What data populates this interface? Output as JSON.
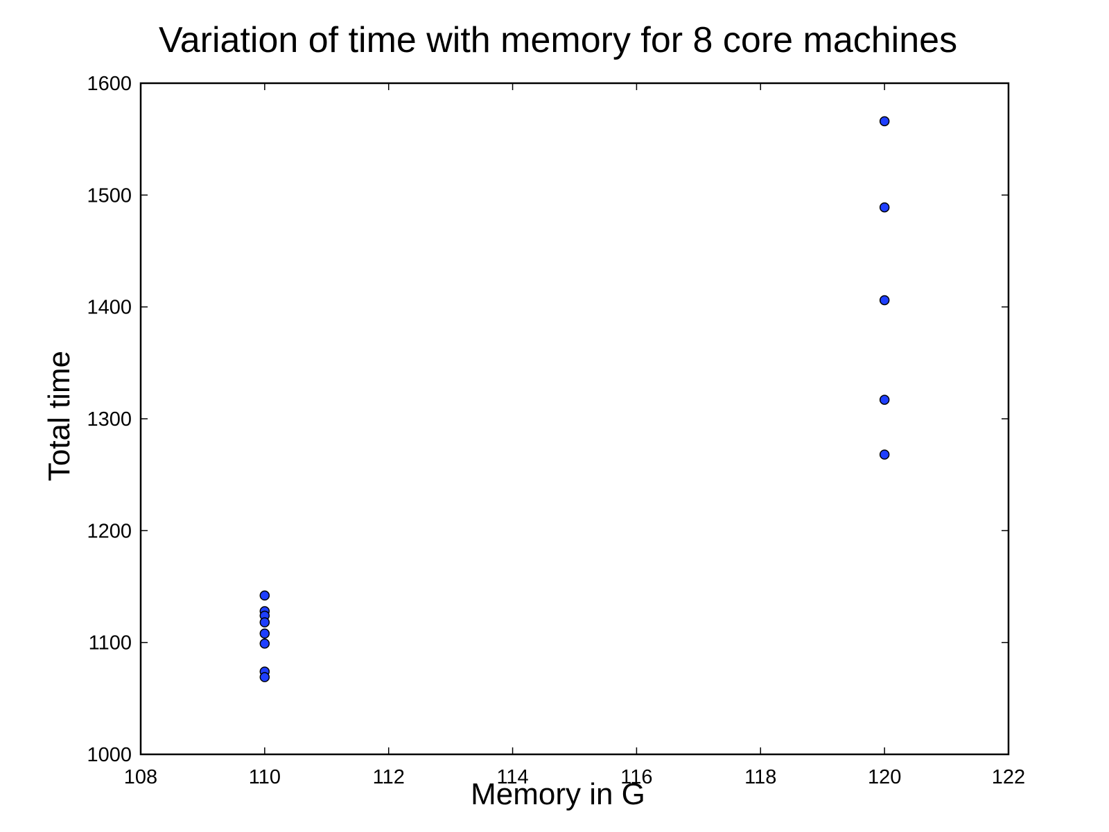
{
  "chart_data": {
    "type": "scatter",
    "title": "Variation of time with memory for 8 core machines",
    "xlabel": "Memory in G",
    "ylabel": "Total time",
    "xlim": [
      108,
      122
    ],
    "ylim": [
      1000,
      1600
    ],
    "xticks": [
      "108",
      "110",
      "112",
      "114",
      "116",
      "118",
      "120",
      "122"
    ],
    "yticks": [
      "1000",
      "1100",
      "1200",
      "1300",
      "1400",
      "1500",
      "1600"
    ],
    "grid": false,
    "legend": "none",
    "marker_color": "#1f3fff",
    "marker_edge_color": "#000000",
    "series": [
      {
        "points": [
          {
            "x": 110,
            "y": 1142
          },
          {
            "x": 110,
            "y": 1128
          },
          {
            "x": 110,
            "y": 1124
          },
          {
            "x": 110,
            "y": 1118
          },
          {
            "x": 110,
            "y": 1108
          },
          {
            "x": 110,
            "y": 1099
          },
          {
            "x": 110,
            "y": 1074
          },
          {
            "x": 110,
            "y": 1069
          },
          {
            "x": 120,
            "y": 1566
          },
          {
            "x": 120,
            "y": 1489
          },
          {
            "x": 120,
            "y": 1406
          },
          {
            "x": 120,
            "y": 1317
          },
          {
            "x": 120,
            "y": 1268
          }
        ]
      }
    ]
  }
}
